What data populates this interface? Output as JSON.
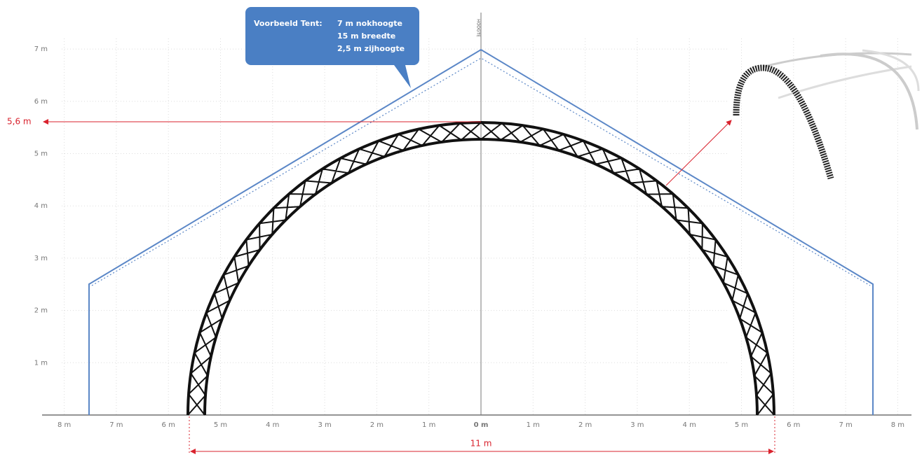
{
  "callout": {
    "title": "Voorbeeld Tent:",
    "lines": [
      "7 m nokhoogte",
      "15 m breedte",
      "2,5 m zijhoogte"
    ]
  },
  "axes": {
    "y_label": "HOOGTE",
    "y_ticks": [
      "1 m",
      "2 m",
      "3 m",
      "4 m",
      "5 m",
      "6 m",
      "7 m"
    ],
    "x_ticks": [
      "8 m",
      "7 m",
      "6 m",
      "5 m",
      "4 m",
      "3 m",
      "2 m",
      "1 m",
      "0 m",
      "1 m",
      "2 m",
      "3 m",
      "4 m",
      "5 m",
      "6 m",
      "7 m",
      "8 m"
    ]
  },
  "dimensions": {
    "height": "5,6 m",
    "width": "11 m"
  }
}
